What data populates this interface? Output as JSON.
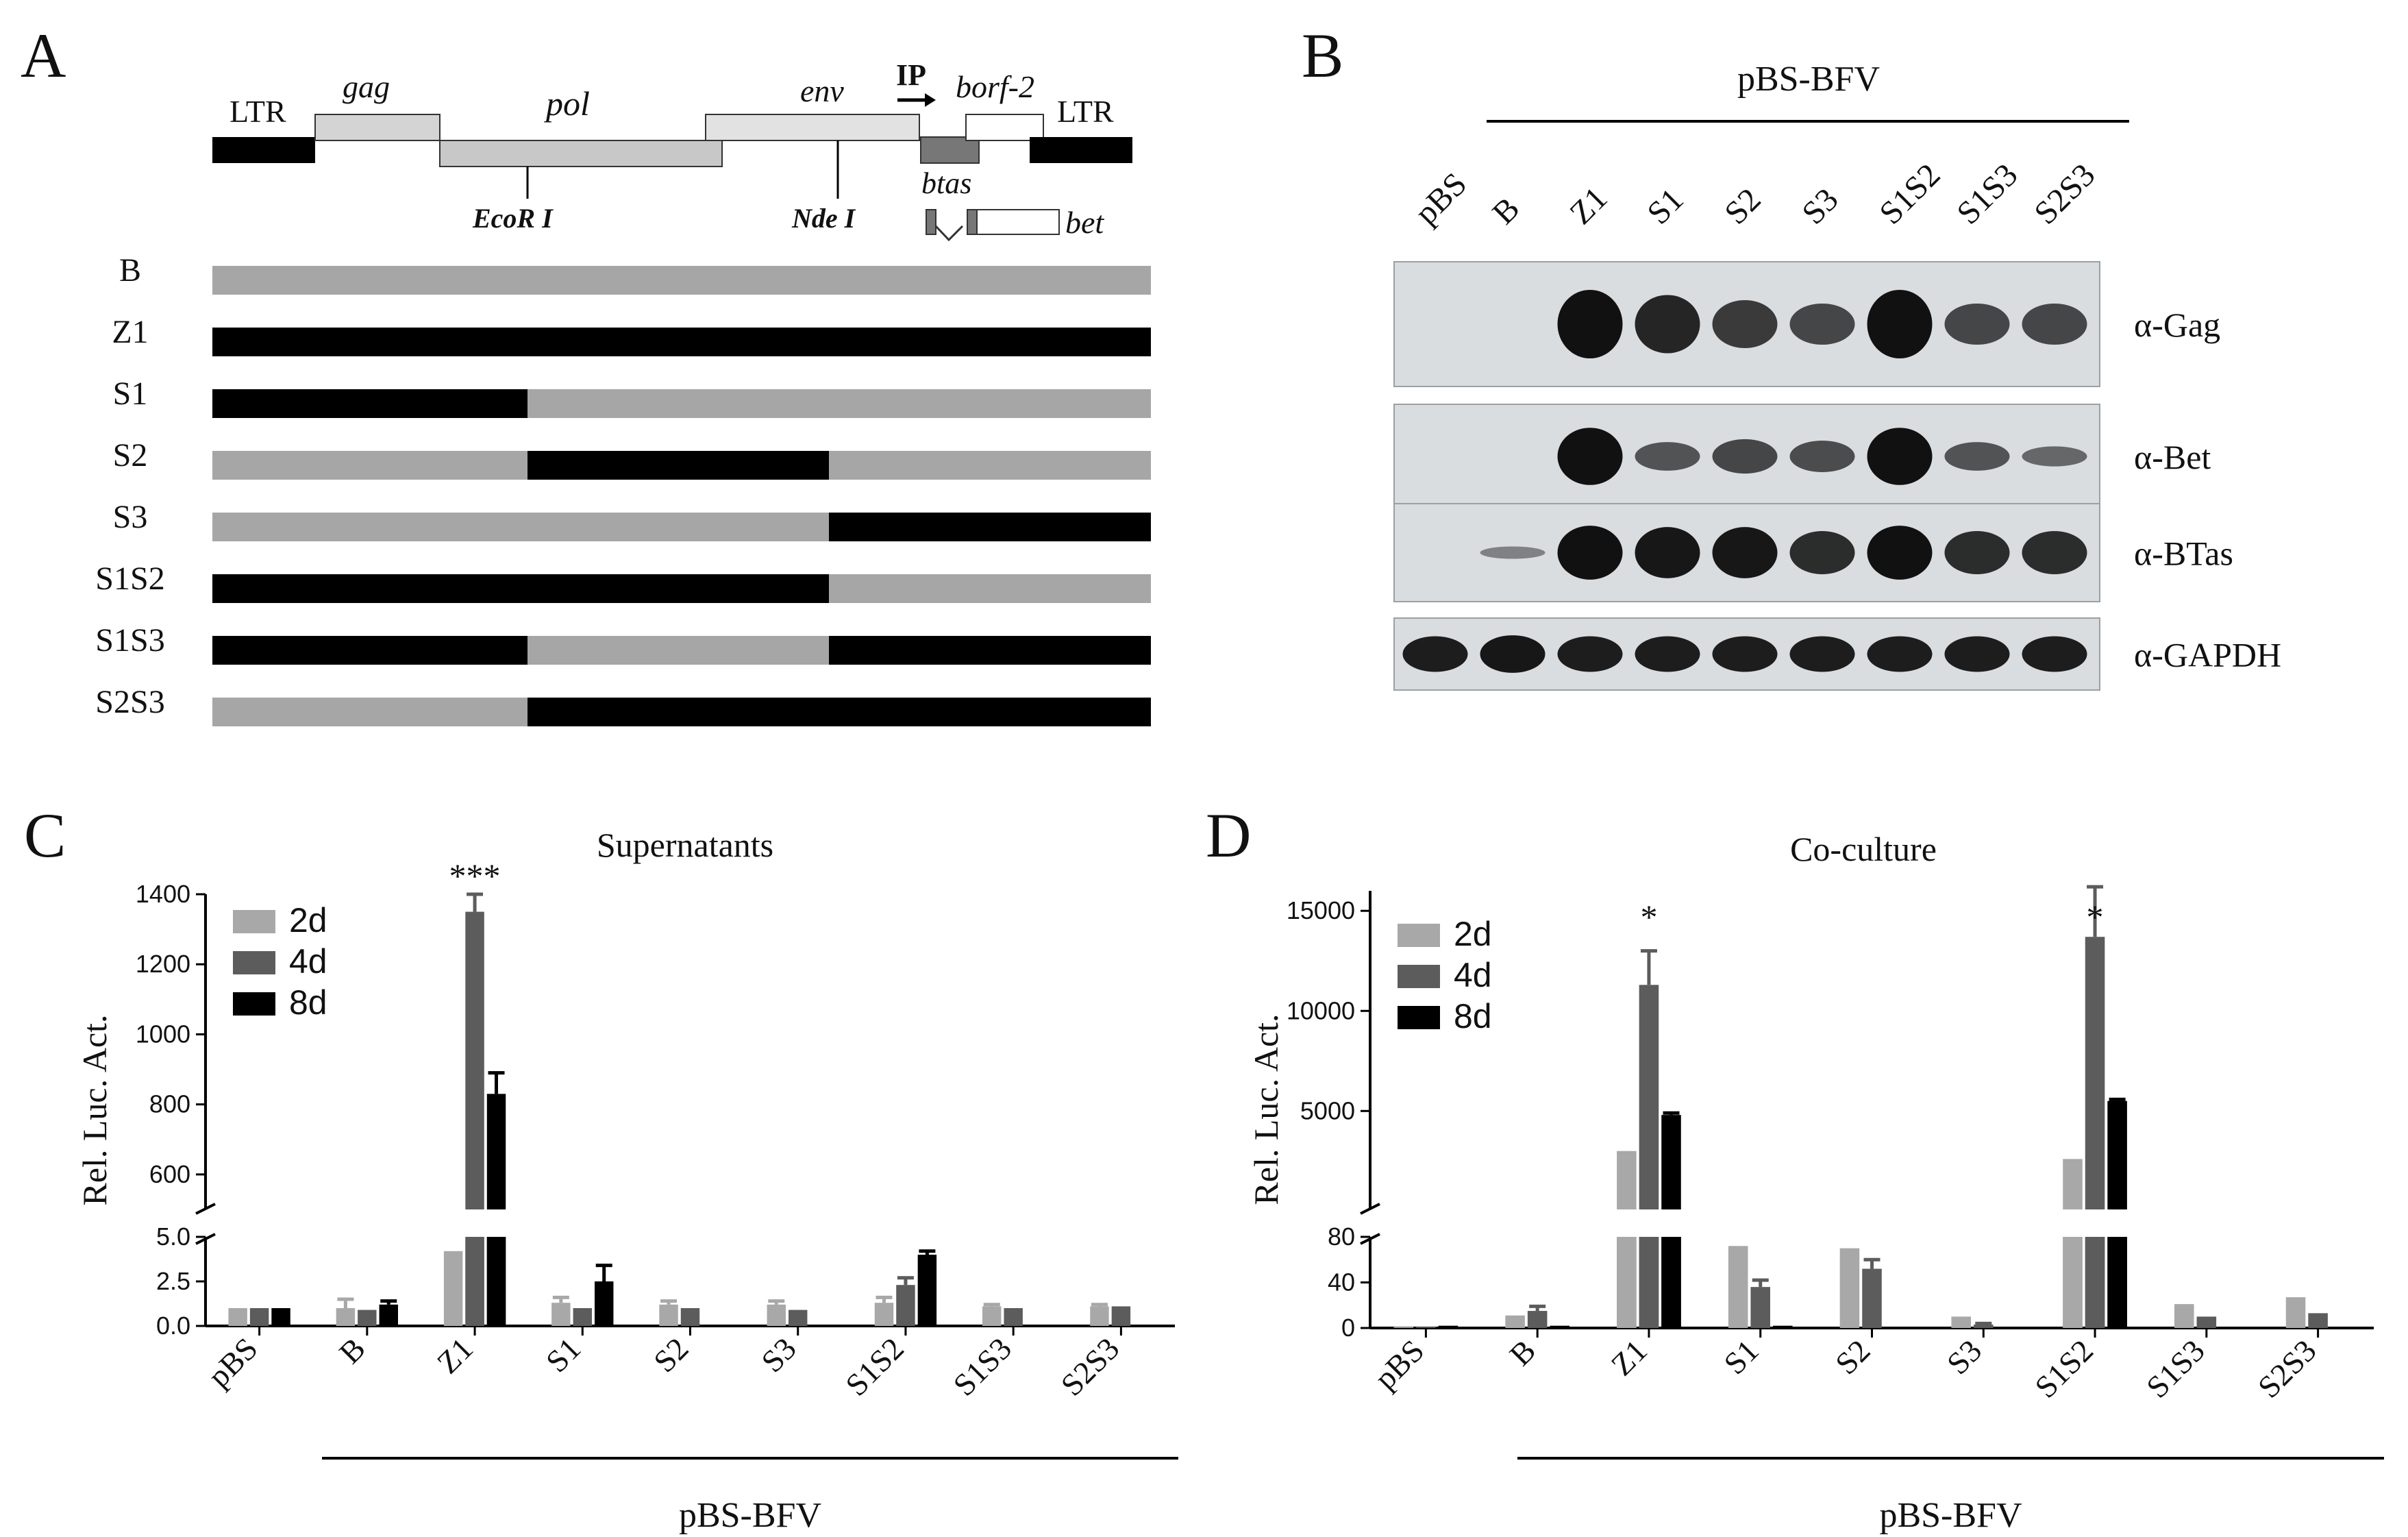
{
  "panel_a": {
    "letter": "A",
    "genome": {
      "ltr_left": "LTR",
      "ltr_right": "LTR",
      "gag": "gag",
      "pol": "pol",
      "env": "env",
      "ip": "IP",
      "borf2": "borf-2",
      "btas": "btas",
      "bet": "bet",
      "ecor1": "EcoR I",
      "nde1": "Nde I"
    },
    "constructs": [
      {
        "name": "B",
        "segments": [
          "gray",
          "gray",
          "gray"
        ]
      },
      {
        "name": "Z1",
        "segments": [
          "black",
          "black",
          "black"
        ]
      },
      {
        "name": "S1",
        "segments": [
          "black",
          "gray",
          "gray"
        ]
      },
      {
        "name": "S2",
        "segments": [
          "gray",
          "black",
          "gray"
        ]
      },
      {
        "name": "S3",
        "segments": [
          "gray",
          "gray",
          "black"
        ]
      },
      {
        "name": "S1S2",
        "segments": [
          "black",
          "black",
          "gray"
        ]
      },
      {
        "name": "S1S3",
        "segments": [
          "black",
          "gray",
          "black"
        ]
      },
      {
        "name": "S2S3",
        "segments": [
          "gray",
          "black",
          "black"
        ]
      }
    ]
  },
  "panel_b": {
    "letter": "B",
    "group_label": "pBS-BFV",
    "lanes": [
      "pBS",
      "B",
      "Z1",
      "S1",
      "S2",
      "S3",
      "S1S2",
      "S1S3",
      "S2S3"
    ],
    "blots": [
      {
        "label": "α-Gag",
        "intensity": [
          0.0,
          0.0,
          1.0,
          0.85,
          0.7,
          0.6,
          1.0,
          0.6,
          0.6
        ]
      },
      {
        "label": "α-Bet",
        "intensity": [
          0.0,
          0.0,
          1.0,
          0.5,
          0.6,
          0.55,
          1.0,
          0.5,
          0.35
        ]
      },
      {
        "label": "α-BTas",
        "intensity": [
          0.0,
          0.15,
          1.0,
          0.95,
          0.95,
          0.8,
          1.0,
          0.8,
          0.8
        ]
      },
      {
        "label": "α-GAPDH",
        "intensity": [
          0.9,
          0.95,
          0.9,
          0.9,
          0.9,
          0.9,
          0.9,
          0.9,
          0.9
        ]
      }
    ]
  },
  "chart_data": [
    {
      "panel": "C",
      "type": "bar",
      "title": "Supernatants",
      "ylabel": "Rel. Luc. Act.",
      "group_label": "pBS-BFV",
      "categories": [
        "pBS",
        "B",
        "Z1",
        "S1",
        "S2",
        "S3",
        "S1S2",
        "S1S3",
        "S2S3"
      ],
      "axis_break": {
        "lower": [
          0,
          5
        ],
        "upper": [
          500,
          1400
        ]
      },
      "yticks_lower": [
        "0.0",
        "2.5",
        "5.0"
      ],
      "yticks_upper": [
        "600",
        "800",
        "1000",
        "1200",
        "1400"
      ],
      "legend": [
        "2d",
        "4d",
        "8d"
      ],
      "series": [
        {
          "name": "2d",
          "color": "#a8a8a8",
          "values": [
            1.0,
            1.0,
            4.2,
            1.3,
            1.2,
            1.2,
            1.3,
            1.1,
            1.1
          ],
          "err": [
            0,
            0.5,
            0,
            0.3,
            0.2,
            0.2,
            0.3,
            0.1,
            0.1
          ]
        },
        {
          "name": "4d",
          "color": "#5c5c5c",
          "values": [
            1.0,
            0.9,
            1350,
            1.0,
            1.0,
            0.9,
            2.3,
            1.0,
            1.1
          ],
          "err": [
            0,
            0,
            50,
            0,
            0,
            0,
            0.4,
            0,
            0
          ]
        },
        {
          "name": "8d",
          "color": "#000000",
          "values": [
            1.0,
            1.2,
            830,
            2.5,
            null,
            null,
            4.0,
            null,
            null
          ],
          "err": [
            0,
            0.2,
            60,
            0.9,
            0,
            0,
            0.2,
            0,
            0
          ]
        }
      ],
      "annotations": [
        {
          "category": "Z1",
          "text": "***"
        }
      ]
    },
    {
      "panel": "D",
      "type": "bar",
      "title": "Co-culture",
      "ylabel": "Rel. Luc. Act.",
      "group_label": "pBS-BFV",
      "categories": [
        "pBS",
        "B",
        "Z1",
        "S1",
        "S2",
        "S3",
        "S1S2",
        "S1S3",
        "S2S3"
      ],
      "axis_break": {
        "lower": [
          0,
          80
        ],
        "upper": [
          80,
          16000
        ]
      },
      "yticks_lower": [
        "0",
        "40",
        "80"
      ],
      "yticks_upper": [
        "5000",
        "10000",
        "15000"
      ],
      "legend": [
        "2d",
        "4d",
        "8d"
      ],
      "series": [
        {
          "name": "2d",
          "color": "#a8a8a8",
          "values": [
            1,
            11,
            3000,
            72,
            70,
            10,
            2600,
            21,
            27
          ],
          "err": [
            0,
            0,
            0,
            0,
            0,
            0,
            0,
            0,
            0
          ]
        },
        {
          "name": "4d",
          "color": "#5c5c5c",
          "values": [
            1,
            15,
            11300,
            36,
            52,
            3,
            13700,
            10,
            13
          ],
          "err": [
            0,
            4,
            1700,
            6,
            8,
            1,
            2500,
            0,
            0
          ]
        },
        {
          "name": "8d",
          "color": "#000000",
          "values": [
            2,
            2,
            4800,
            2,
            null,
            null,
            5500,
            null,
            null
          ],
          "err": [
            0,
            0,
            100,
            0,
            0,
            0,
            80,
            0,
            0
          ]
        }
      ],
      "annotations": [
        {
          "category": "Z1",
          "text": "*"
        },
        {
          "category": "S1S2",
          "text": "*"
        }
      ]
    }
  ]
}
